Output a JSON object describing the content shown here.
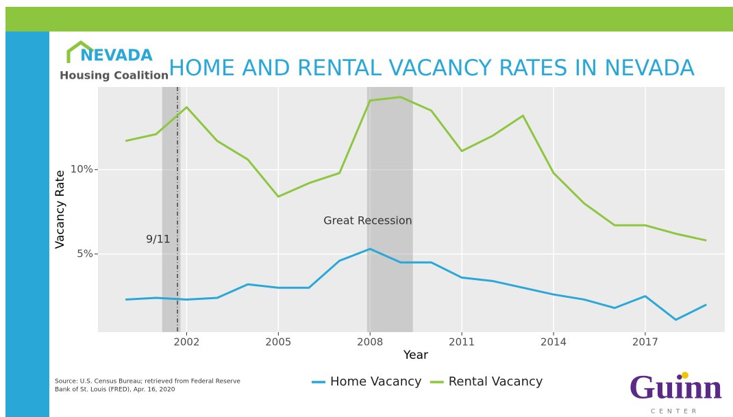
{
  "branding": {
    "logo_top": "NEVADA",
    "logo_bottom": "Housing Coalition",
    "center_name": "Guinn",
    "center_sub": "CENTER"
  },
  "source": [
    "Source: U.S. Census Bureau; retrieved from Federal Reserve",
    "Bank of St. Louis (FRED), Apr. 16, 2020"
  ],
  "chart_data": {
    "type": "line",
    "title": "HOME AND RENTAL VACANCY RATES IN NEVADA",
    "x_label": "Year",
    "y_label": "Vacancy Rate",
    "x": [
      2000,
      2001,
      2002,
      2003,
      2004,
      2005,
      2006,
      2007,
      2008,
      2009,
      2010,
      2011,
      2012,
      2013,
      2014,
      2015,
      2016,
      2017,
      2018,
      2019
    ],
    "series": [
      {
        "name": "Home Vacancy",
        "color": "#29a8d8",
        "values": [
          2.3,
          2.4,
          2.3,
          2.4,
          3.2,
          3.0,
          3.0,
          4.6,
          5.3,
          4.5,
          4.5,
          3.6,
          3.4,
          3.0,
          2.6,
          2.3,
          1.8,
          2.5,
          1.1,
          2.0
        ]
      },
      {
        "name": "Rental Vacancy",
        "color": "#8dc63f",
        "values": [
          11.7,
          12.1,
          13.7,
          11.7,
          10.6,
          8.4,
          9.2,
          9.8,
          14.1,
          14.3,
          13.5,
          11.1,
          12.0,
          13.2,
          9.8,
          8.0,
          6.7,
          6.7,
          6.2,
          5.8
        ]
      }
    ],
    "xlim": [
      1999.1,
      2019.6
    ],
    "ylim": [
      0.37,
      14.9
    ],
    "xticks": [
      2002,
      2005,
      2008,
      2011,
      2014,
      2017
    ],
    "yticks": [
      {
        "value": 5,
        "label": "5%"
      },
      {
        "value": 10,
        "label": "10%"
      }
    ],
    "grid": true,
    "legend": "bottom",
    "shaded_periods": [
      {
        "start": 2001.2,
        "end": 2001.8
      },
      {
        "start": 2007.9,
        "end": 2009.4
      }
    ],
    "annotations": [
      {
        "text": "9/11",
        "x": 2001.7
      },
      {
        "text": "Great Recession"
      }
    ]
  }
}
